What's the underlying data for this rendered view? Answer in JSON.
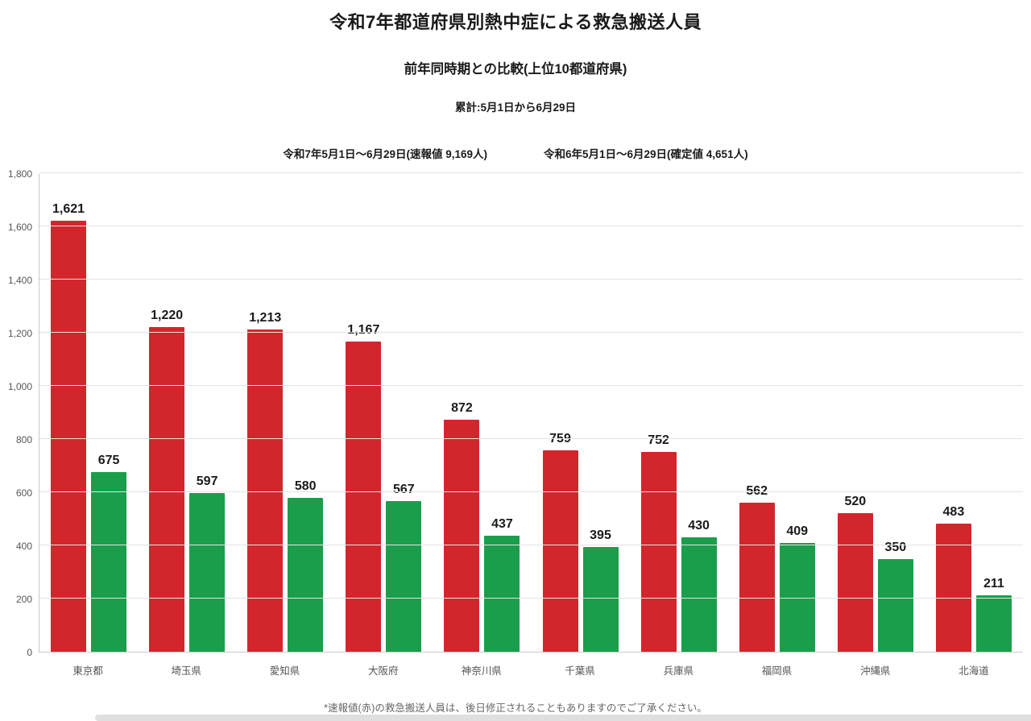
{
  "header": {
    "title": "令和7年都道府県別熱中症による救急搬送人員",
    "subtitle": "前年同時期との比較(上位10都道府県)",
    "period": "累計:5月1日から6月29日",
    "series1_label": "令和7年5月1日〜6月29日(速報値 9,169人)",
    "series2_label": "令和6年5月1日〜6月29日(確定値 4,651人)"
  },
  "chart_data": {
    "type": "bar",
    "title": "令和7年都道府県別熱中症による救急搬送人員",
    "subtitle": "前年同時期との比較(上位10都道府県)",
    "categories": [
      "東京都",
      "埼玉県",
      "愛知県",
      "大阪府",
      "神奈川県",
      "千葉県",
      "兵庫県",
      "福岡県",
      "沖縄県",
      "北海道"
    ],
    "series": [
      {
        "name": "令和7年5月1日〜6月29日(速報値 9,169人)",
        "color": "#d2262c",
        "values": [
          1621,
          1220,
          1213,
          1167,
          872,
          759,
          752,
          562,
          520,
          483
        ]
      },
      {
        "name": "令和6年5月1日〜6月29日(確定値 4,651人)",
        "color": "#1a9e4b",
        "values": [
          675,
          597,
          580,
          567,
          437,
          395,
          430,
          409,
          350,
          211
        ]
      }
    ],
    "xlabel": "",
    "ylabel": "",
    "ylim": [
      0,
      1800
    ],
    "ytick_step": 200,
    "grid": true,
    "value_labels": true,
    "legend_position": "top"
  },
  "footer": {
    "note": "*速報値(赤)の救急搬送人員は、後日修正されることもありますのでご了承ください。"
  }
}
